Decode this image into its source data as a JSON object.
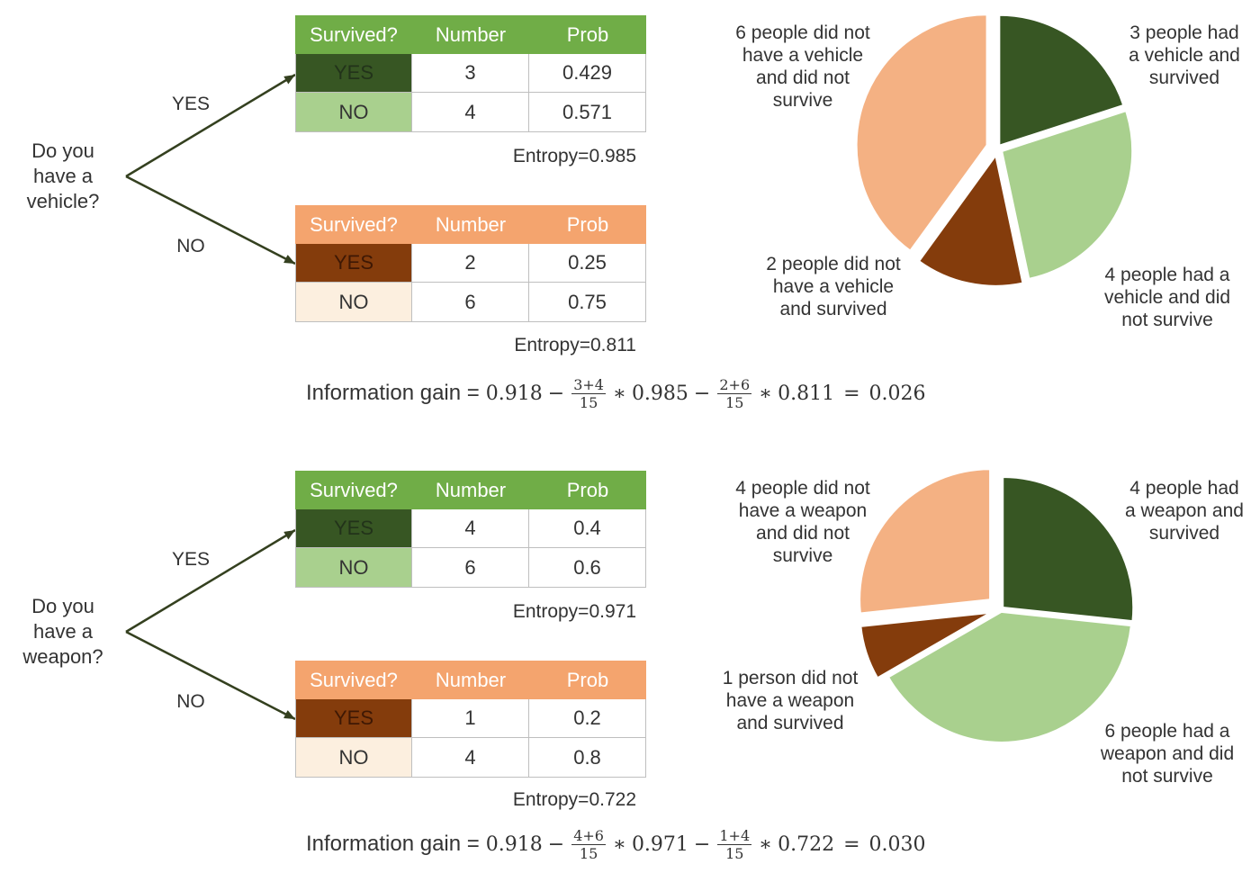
{
  "colors": {
    "green_header": "#70ad47",
    "dark_green": "#375623",
    "light_green": "#a9d08e",
    "orange_header": "#f4a46e",
    "brown": "#843c0c",
    "cream": "#fcefdf",
    "arrow": "#34401f"
  },
  "table_header": {
    "survived": "Survived?",
    "number": "Number",
    "prob": "Prob"
  },
  "splits": [
    {
      "question_lines": [
        "Do you",
        "have a",
        "vehicle?"
      ],
      "branch_yes": "YES",
      "branch_no": "NO",
      "table_yes": {
        "rows": [
          {
            "label": "YES",
            "number": "3",
            "prob": "0.429"
          },
          {
            "label": "NO",
            "number": "4",
            "prob": "0.571"
          }
        ],
        "entropy": "Entropy=0.985"
      },
      "table_no": {
        "rows": [
          {
            "label": "YES",
            "number": "2",
            "prob": "0.25"
          },
          {
            "label": "NO",
            "number": "6",
            "prob": "0.75"
          }
        ],
        "entropy": "Entropy=0.811"
      },
      "information_gain": {
        "label": "Information gain =",
        "parent_entropy": "0.918",
        "minus": "−",
        "weight_yes": {
          "num": "3+4",
          "den": "15"
        },
        "times": "∗",
        "entropy_yes": "0.985",
        "weight_no": {
          "num": "2+6",
          "den": "15"
        },
        "entropy_no": "0.811",
        "equals": "=",
        "result": "0.026"
      },
      "pie": {
        "slices": [
          {
            "value": 3,
            "color": "#375623",
            "label_lines": [
              "3 people had",
              "a vehicle and",
              "survived"
            ]
          },
          {
            "value": 4,
            "color": "#a9d08e",
            "label_lines": [
              "4 people had a",
              "vehicle and did",
              "not survive"
            ]
          },
          {
            "value": 2,
            "color": "#843c0c",
            "label_lines": [
              "2 people did not",
              "have a vehicle",
              "and survived"
            ]
          },
          {
            "value": 6,
            "color": "#f4b183",
            "label_lines": [
              "6 people did not",
              "have a vehicle",
              "and did not",
              "survive"
            ]
          }
        ]
      }
    },
    {
      "question_lines": [
        "Do you",
        "have a",
        "weapon?"
      ],
      "branch_yes": "YES",
      "branch_no": "NO",
      "table_yes": {
        "rows": [
          {
            "label": "YES",
            "number": "4",
            "prob": "0.4"
          },
          {
            "label": "NO",
            "number": "6",
            "prob": "0.6"
          }
        ],
        "entropy": "Entropy=0.971"
      },
      "table_no": {
        "rows": [
          {
            "label": "YES",
            "number": "1",
            "prob": "0.2"
          },
          {
            "label": "NO",
            "number": "4",
            "prob": "0.8"
          }
        ],
        "entropy": "Entropy=0.722"
      },
      "information_gain": {
        "label": "Information gain =",
        "parent_entropy": "0.918",
        "minus": "−",
        "weight_yes": {
          "num": "4+6",
          "den": "15"
        },
        "times": "∗",
        "entropy_yes": "0.971",
        "weight_no": {
          "num": "1+4",
          "den": "15"
        },
        "entropy_no": "0.722",
        "equals": "=",
        "result": "0.030"
      },
      "pie": {
        "slices": [
          {
            "value": 4,
            "color": "#375623",
            "label_lines": [
              "4 people had",
              "a weapon and",
              "survived"
            ]
          },
          {
            "value": 6,
            "color": "#a9d08e",
            "label_lines": [
              "6 people had a",
              "weapon and did",
              "not survive"
            ]
          },
          {
            "value": 1,
            "color": "#843c0c",
            "label_lines": [
              "1 person did not",
              "have a weapon",
              "and survived"
            ]
          },
          {
            "value": 4,
            "color": "#f4b183",
            "label_lines": [
              "4 people did not",
              "have a weapon",
              "and did not",
              "survive"
            ]
          }
        ]
      }
    }
  ]
}
